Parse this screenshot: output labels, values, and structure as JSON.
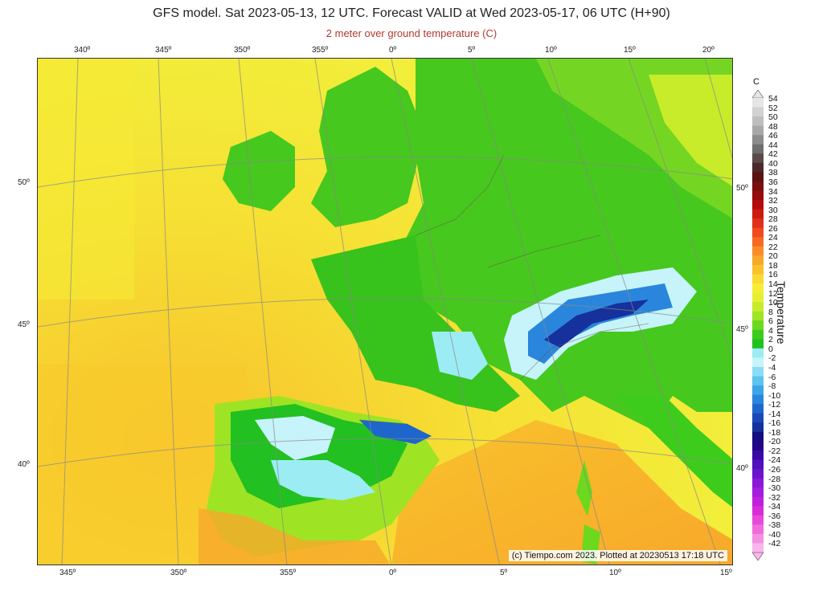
{
  "title": "GFS model. Sat 2023-05-13, 12 UTC. Forecast VALID at Wed 2023-05-17, 06 UTC (H+90)",
  "subtitle": "2 meter over ground temperature (C)",
  "credit": "(c) Tiempo.com 2023. Plotted at 20230513 17:18 UTC",
  "map": {
    "top_ticks": [
      "340º",
      "345º",
      "350º",
      "355º",
      "0º",
      "5º",
      "10º",
      "15º",
      "20º"
    ],
    "bottom_ticks": [
      "345º",
      "350º",
      "355º",
      "0º",
      "5º",
      "10º",
      "15º"
    ],
    "left_ticks": [
      "50º",
      "45º",
      "40º"
    ],
    "right_ticks": [
      "50º",
      "45º",
      "40º"
    ],
    "regions": [
      {
        "id": "ocean",
        "temp_band": "16-20"
      },
      {
        "id": "iberia",
        "temp_band": "12-22"
      },
      {
        "id": "france",
        "temp_band": "8-12"
      },
      {
        "id": "alps",
        "temp_band": "-16-0"
      }
    ]
  },
  "colorbar": {
    "unit": "C",
    "label": "Temperature",
    "levels": [
      "54",
      "52",
      "50",
      "48",
      "46",
      "44",
      "42",
      "40",
      "38",
      "36",
      "34",
      "32",
      "30",
      "28",
      "26",
      "24",
      "22",
      "20",
      "18",
      "16",
      "14",
      "12",
      "10",
      "8",
      "6",
      "4",
      "2",
      "0",
      "-2",
      "-4",
      "-6",
      "-8",
      "-10",
      "-12",
      "-14",
      "-16",
      "-18",
      "-20",
      "-22",
      "-24",
      "-26",
      "-28",
      "-30",
      "-32",
      "-34",
      "-36",
      "-38",
      "-40",
      "-42"
    ],
    "colors": [
      "#e6e6e6",
      "#d2d2d2",
      "#bebebe",
      "#a8a8a8",
      "#8c8c8c",
      "#6e6e6e",
      "#5a4a4a",
      "#4a2a2a",
      "#5a1212",
      "#780e0e",
      "#960b0b",
      "#b40a0a",
      "#cc1a10",
      "#e0301a",
      "#f04a20",
      "#f86a24",
      "#fa8c28",
      "#f8a82a",
      "#f8c22c",
      "#f8da30",
      "#f6ee34",
      "#e6f032",
      "#c8ec2a",
      "#9ee424",
      "#6cd81e",
      "#3ecc1c",
      "#22c020",
      "#9cecf4",
      "#c6f4fa",
      "#8adcf4",
      "#5ac4ee",
      "#3aa6e6",
      "#2a86dc",
      "#1e66cc",
      "#1a48b8",
      "#16309c",
      "#120e80",
      "#22068a",
      "#3a08a4",
      "#5010bc",
      "#6a14cc",
      "#8a18d8",
      "#a41cdc",
      "#c020dc",
      "#d82cd8",
      "#e84ad8",
      "#f06cdc",
      "#f490e2",
      "#f8b6ec"
    ]
  }
}
